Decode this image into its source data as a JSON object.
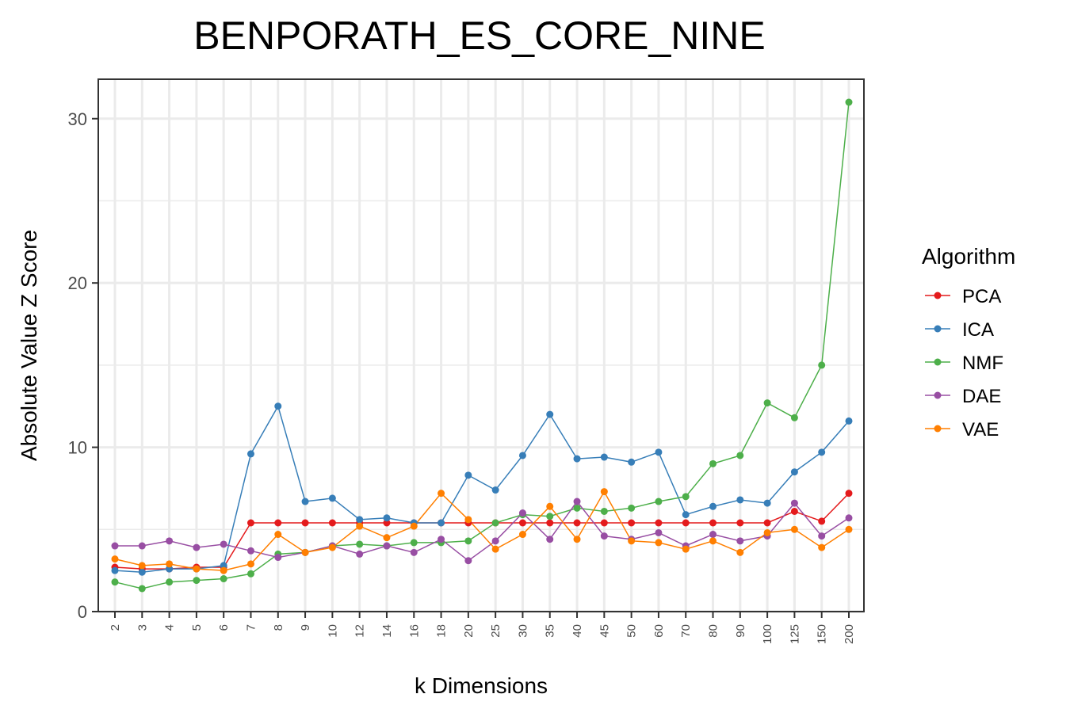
{
  "chart_data": {
    "type": "line",
    "title": "BENPORATH_ES_CORE_NINE",
    "xlabel": "k Dimensions",
    "ylabel": "Absolute Value Z Score",
    "categories": [
      "2",
      "3",
      "4",
      "5",
      "6",
      "7",
      "8",
      "9",
      "10",
      "12",
      "14",
      "16",
      "18",
      "20",
      "25",
      "30",
      "35",
      "40",
      "45",
      "50",
      "60",
      "70",
      "80",
      "90",
      "100",
      "125",
      "150",
      "200"
    ],
    "ylim": [
      0,
      32.4
    ],
    "yticks": [
      0,
      10,
      20,
      30
    ],
    "grid": true,
    "legend": {
      "title": "Algorithm",
      "position": "right"
    },
    "series": [
      {
        "name": "PCA",
        "color": "#e41a1c",
        "values": [
          2.7,
          2.6,
          2.6,
          2.7,
          2.7,
          5.4,
          5.4,
          5.4,
          5.4,
          5.4,
          5.4,
          5.4,
          5.4,
          5.4,
          5.4,
          5.4,
          5.4,
          5.4,
          5.4,
          5.4,
          5.4,
          5.4,
          5.4,
          5.4,
          5.4,
          6.1,
          5.5,
          7.2
        ]
      },
      {
        "name": "ICA",
        "color": "#377eb8",
        "values": [
          2.5,
          2.4,
          2.6,
          2.6,
          2.8,
          9.6,
          12.5,
          6.7,
          6.9,
          5.6,
          5.7,
          5.4,
          5.4,
          8.3,
          7.4,
          9.5,
          12.0,
          9.3,
          9.4,
          9.1,
          9.7,
          5.9,
          6.4,
          6.8,
          6.6,
          8.5,
          9.7,
          11.6
        ]
      },
      {
        "name": "NMF",
        "color": "#4daf4a",
        "values": [
          1.8,
          1.4,
          1.8,
          1.9,
          2.0,
          2.3,
          3.5,
          3.6,
          4.0,
          4.1,
          4.0,
          4.2,
          4.2,
          4.3,
          5.4,
          5.9,
          5.8,
          6.3,
          6.1,
          6.3,
          6.7,
          7.0,
          9.0,
          9.5,
          12.7,
          11.8,
          15.0,
          31.0
        ]
      },
      {
        "name": "DAE",
        "color": "#984ea3",
        "values": [
          4.0,
          4.0,
          4.3,
          3.9,
          4.1,
          3.7,
          3.3,
          3.6,
          4.0,
          3.5,
          4.0,
          3.6,
          4.4,
          3.1,
          4.3,
          6.0,
          4.4,
          6.7,
          4.6,
          4.4,
          4.8,
          4.0,
          4.7,
          4.3,
          4.6,
          6.6,
          4.6,
          5.7
        ]
      },
      {
        "name": "VAE",
        "color": "#ff7f00",
        "values": [
          3.2,
          2.8,
          2.9,
          2.6,
          2.5,
          2.9,
          4.7,
          3.6,
          3.9,
          5.2,
          4.5,
          5.2,
          7.2,
          5.6,
          3.8,
          4.7,
          6.4,
          4.4,
          7.3,
          4.3,
          4.2,
          3.8,
          4.3,
          3.6,
          4.8,
          5.0,
          3.9,
          5.0
        ]
      }
    ]
  }
}
